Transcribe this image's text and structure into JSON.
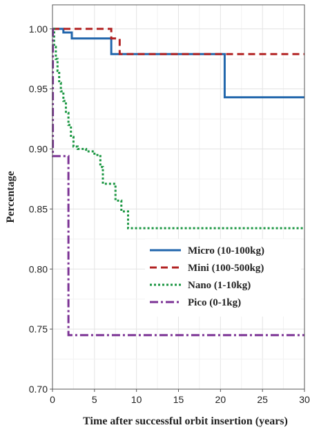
{
  "chart_data": {
    "type": "line",
    "title": "",
    "xlabel": "Time after successful orbit insertion (years)",
    "ylabel": "Percentage",
    "xlim": [
      0,
      30
    ],
    "ylim": [
      0.7,
      1.02
    ],
    "x_ticks": [
      0,
      5,
      10,
      15,
      20,
      25,
      30
    ],
    "y_ticks": [
      0.7,
      0.75,
      0.8,
      0.85,
      0.9,
      0.95,
      1.0
    ],
    "x_tick_labels": [
      "0",
      "5",
      "10",
      "15",
      "20",
      "25",
      "30"
    ],
    "y_tick_labels": [
      "0.70",
      "0.75",
      "0.80",
      "0.85",
      "0.90",
      "0.95",
      "1.00"
    ],
    "grid": true,
    "legend_position": "bottom-right",
    "step": true,
    "series": [
      {
        "name": "Micro (10-100kg)",
        "color": "#2166ac",
        "dash": "solid",
        "x": [
          0,
          1.3,
          2.3,
          7.0,
          20.5,
          30
        ],
        "y": [
          1.0,
          0.997,
          0.992,
          0.979,
          0.943,
          0.943
        ]
      },
      {
        "name": "Mini (100-500kg)",
        "color": "#b22222",
        "dash": "dashed",
        "x": [
          0,
          7.0,
          8.0,
          30
        ],
        "y": [
          1.0,
          0.992,
          0.979,
          0.979
        ]
      },
      {
        "name": "Nano (1-10kg)",
        "color": "#1a9641",
        "dash": "dotted",
        "x": [
          0,
          0.2,
          0.4,
          0.6,
          0.8,
          1.0,
          1.3,
          1.6,
          1.9,
          2.2,
          2.5,
          3.0,
          4.0,
          5.0,
          5.7,
          6.0,
          7.5,
          8.2,
          9.0,
          30
        ],
        "y": [
          1.0,
          0.985,
          0.975,
          0.965,
          0.955,
          0.948,
          0.94,
          0.93,
          0.92,
          0.91,
          0.902,
          0.9,
          0.898,
          0.895,
          0.885,
          0.871,
          0.857,
          0.848,
          0.834,
          0.834
        ]
      },
      {
        "name": "Pico (0-1kg)",
        "color": "#7b3294",
        "dash": "dashdot",
        "x": [
          0,
          0.05,
          1.9,
          30
        ],
        "y": [
          1.0,
          0.894,
          0.745,
          0.745
        ]
      }
    ]
  }
}
